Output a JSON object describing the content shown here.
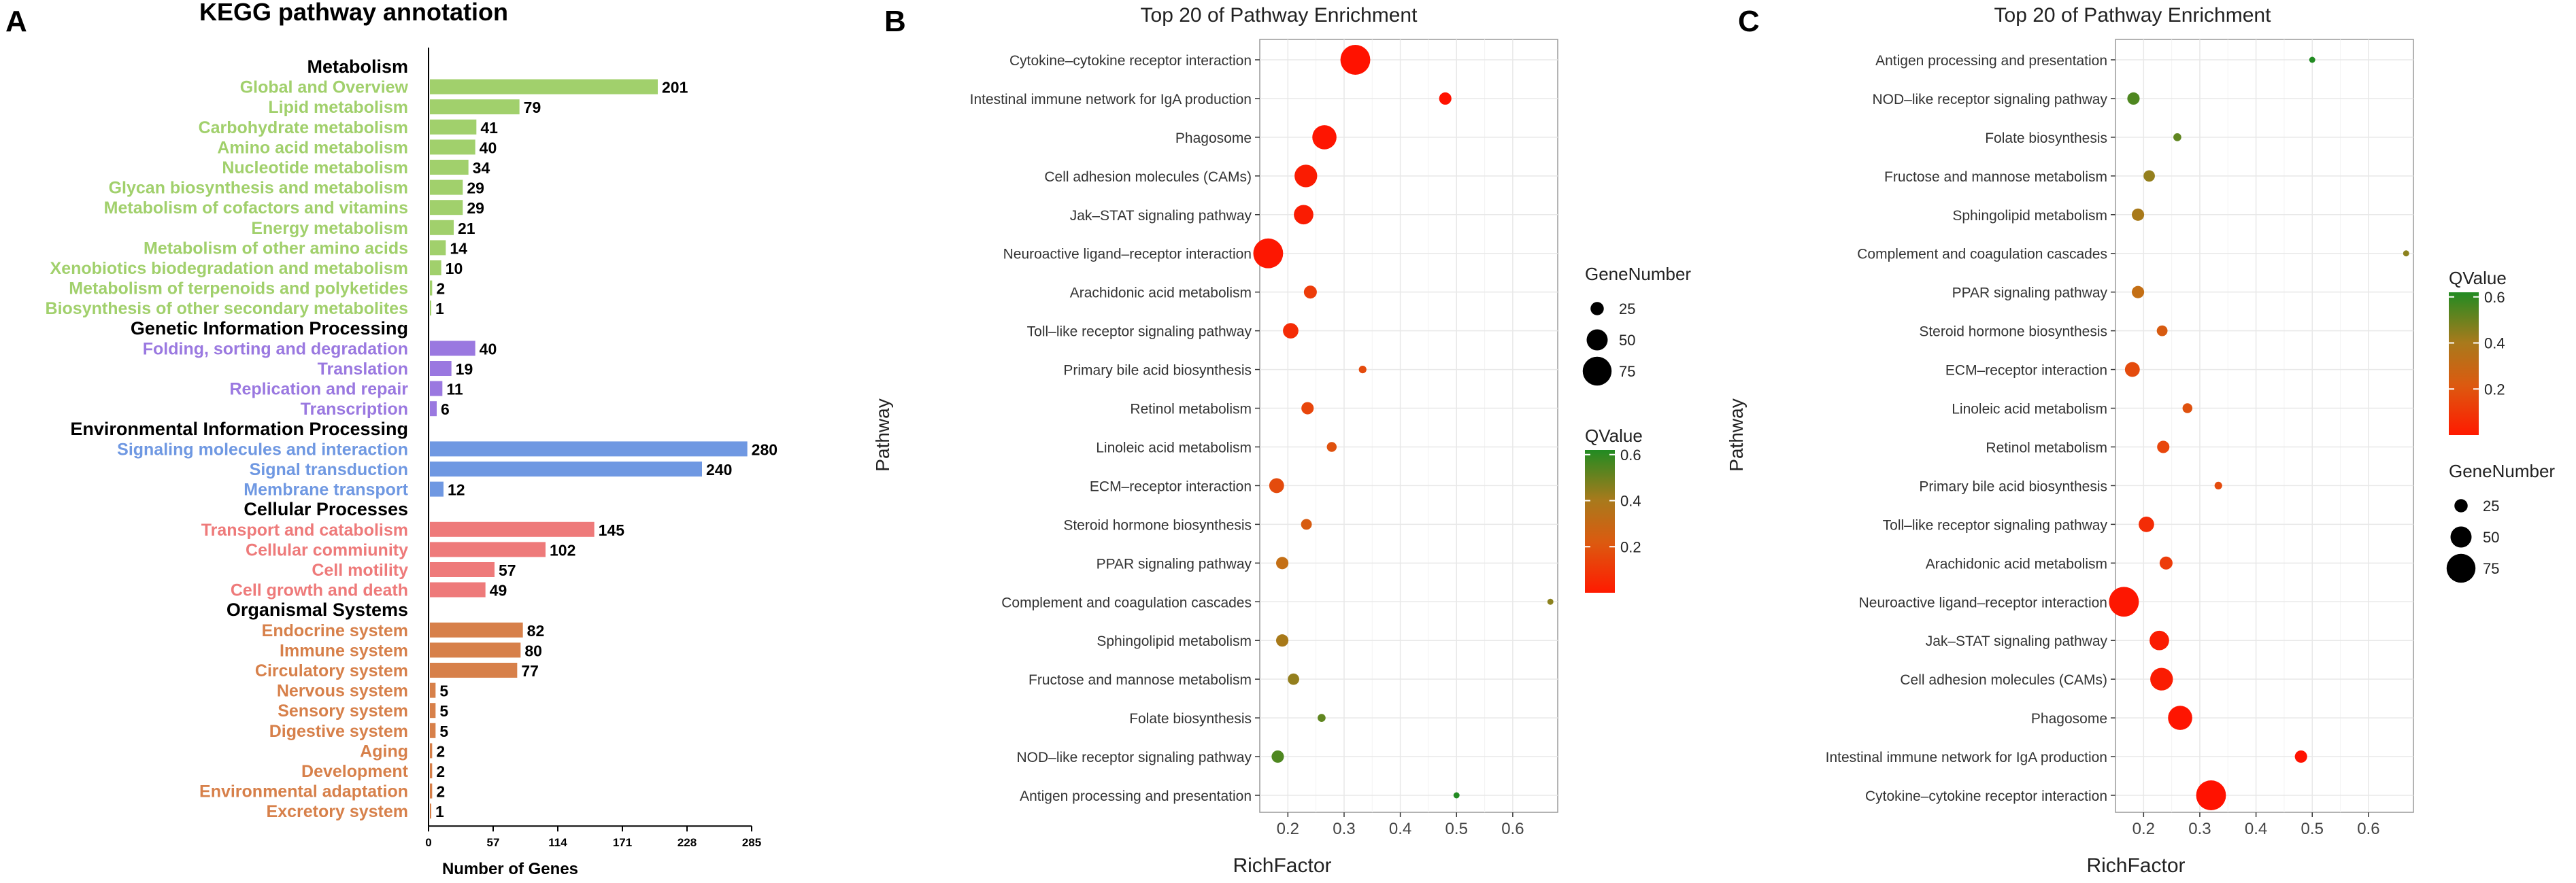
{
  "panels": {
    "a_letter": "A",
    "b_letter": "B",
    "c_letter": "C"
  },
  "chart_data": [
    {
      "type": "bar",
      "orientation": "horizontal",
      "title": "KEGG pathway annotation",
      "xlabel": "Number of Genes",
      "xticks": [
        0,
        57,
        114,
        171,
        228,
        285
      ],
      "xlim": [
        0,
        285
      ],
      "groups": [
        {
          "name": "Metabolism",
          "color": "#a1d06c",
          "items": [
            {
              "label": "Global and Overview",
              "value": 201
            },
            {
              "label": "Lipid metabolism",
              "value": 79
            },
            {
              "label": "Carbohydrate metabolism",
              "value": 41
            },
            {
              "label": "Amino acid metabolism",
              "value": 40
            },
            {
              "label": "Nucleotide metabolism",
              "value": 34
            },
            {
              "label": "Glycan biosynthesis and metabolism",
              "value": 29
            },
            {
              "label": "Metabolism of cofactors and vitamins",
              "value": 29
            },
            {
              "label": "Energy metabolism",
              "value": 21
            },
            {
              "label": "Metabolism of other amino acids",
              "value": 14
            },
            {
              "label": "Xenobiotics biodegradation and metabolism",
              "value": 10
            },
            {
              "label": "Metabolism of terpenoids and polyketides",
              "value": 2
            },
            {
              "label": "Biosynthesis of other secondary metabolites",
              "value": 1
            }
          ]
        },
        {
          "name": "Genetic Information Processing",
          "color": "#9a78e0",
          "items": [
            {
              "label": "Folding, sorting and degradation",
              "value": 40
            },
            {
              "label": "Translation",
              "value": 19
            },
            {
              "label": "Replication and repair",
              "value": 11
            },
            {
              "label": "Transcription",
              "value": 6
            }
          ]
        },
        {
          "name": "Environmental Information Processing",
          "color": "#6f98e2",
          "items": [
            {
              "label": "Signaling molecules and interaction",
              "value": 280
            },
            {
              "label": "Signal transduction",
              "value": 240
            },
            {
              "label": "Membrane transport",
              "value": 12
            }
          ]
        },
        {
          "name": "Cellular Processes",
          "color": "#ee7a7a",
          "items": [
            {
              "label": "Transport and catabolism",
              "value": 145
            },
            {
              "label": "Cellular commiunity",
              "value": 102
            },
            {
              "label": "Cell motility",
              "value": 57
            },
            {
              "label": "Cell growth and death",
              "value": 49
            }
          ]
        },
        {
          "name": "Organismal Systems",
          "color": "#d7804a",
          "items": [
            {
              "label": "Endocrine system",
              "value": 82
            },
            {
              "label": "Immune system",
              "value": 80
            },
            {
              "label": "Circulatory system",
              "value": 77
            },
            {
              "label": "Nervous system",
              "value": 5
            },
            {
              "label": "Sensory system",
              "value": 5
            },
            {
              "label": "Digestive system",
              "value": 5
            },
            {
              "label": "Aging",
              "value": 2
            },
            {
              "label": "Development",
              "value": 2
            },
            {
              "label": "Environmental adaptation",
              "value": 2
            },
            {
              "label": "Excretory system",
              "value": 1
            }
          ]
        }
      ]
    },
    {
      "type": "scatter",
      "title": "Top 20 of Pathway Enrichment",
      "xlabel": "RichFactor",
      "ylabel": "Pathway",
      "xlim": [
        0.15,
        0.68
      ],
      "xticks": [
        "0.2",
        "0.3",
        "0.4",
        "0.5",
        "0.6"
      ],
      "legend_size": {
        "title": "GeneNumber",
        "values": [
          "25",
          "50",
          "75"
        ]
      },
      "legend_color": {
        "title": "QValue",
        "ticks": [
          "0.6",
          "0.4",
          "0.2"
        ],
        "low_color": "#ff0000",
        "high_color": "#228b22"
      },
      "points": [
        {
          "pathway": "Cytokine–cytokine receptor interaction",
          "rich": 0.32,
          "genes": 78,
          "q": 0.0
        },
        {
          "pathway": "Intestinal immune network for IgA production",
          "rich": 0.48,
          "genes": 22,
          "q": 0.0
        },
        {
          "pathway": "Phagosome",
          "rich": 0.265,
          "genes": 60,
          "q": 0.01
        },
        {
          "pathway": "Cell adhesion molecules (CAMs)",
          "rich": 0.232,
          "genes": 55,
          "q": 0.04
        },
        {
          "pathway": "Jak–STAT signaling pathway",
          "rich": 0.228,
          "genes": 45,
          "q": 0.04
        },
        {
          "pathway": "Neuroactive ligand–receptor interaction",
          "rich": 0.165,
          "genes": 78,
          "q": 0.02
        },
        {
          "pathway": "Arachidonic acid metabolism",
          "rich": 0.24,
          "genes": 24,
          "q": 0.16
        },
        {
          "pathway": "Toll–like receptor signaling pathway",
          "rich": 0.205,
          "genes": 32,
          "q": 0.1
        },
        {
          "pathway": "Primary bile acid biosynthesis",
          "rich": 0.333,
          "genes": 7,
          "q": 0.22
        },
        {
          "pathway": "Retinol metabolism",
          "rich": 0.235,
          "genes": 22,
          "q": 0.2
        },
        {
          "pathway": "Linoleic acid metabolism",
          "rich": 0.278,
          "genes": 14,
          "q": 0.24
        },
        {
          "pathway": "ECM–receptor interaction",
          "rich": 0.18,
          "genes": 30,
          "q": 0.22
        },
        {
          "pathway": "Steroid hormone biosynthesis",
          "rich": 0.233,
          "genes": 17,
          "q": 0.28
        },
        {
          "pathway": "PPAR signaling pathway",
          "rich": 0.19,
          "genes": 22,
          "q": 0.36
        },
        {
          "pathway": "Complement and coagulation cascades",
          "rich": 0.667,
          "genes": 2,
          "q": 0.5
        },
        {
          "pathway": "Sphingolipid metabolism",
          "rich": 0.19,
          "genes": 22,
          "q": 0.43
        },
        {
          "pathway": "Fructose and mannose metabolism",
          "rich": 0.21,
          "genes": 19,
          "q": 0.48
        },
        {
          "pathway": "Folate biosynthesis",
          "rich": 0.26,
          "genes": 8,
          "q": 0.55
        },
        {
          "pathway": "NOD–like receptor signaling pathway",
          "rich": 0.182,
          "genes": 22,
          "q": 0.57
        },
        {
          "pathway": "Antigen processing and presentation",
          "rich": 0.5,
          "genes": 2,
          "q": 0.62
        }
      ]
    },
    {
      "type": "scatter",
      "title": "Top 20 of Pathway Enrichment",
      "xlabel": "RichFactor",
      "ylabel": "Pathway",
      "xlim": [
        0.15,
        0.68
      ],
      "xticks": [
        "0.2",
        "0.3",
        "0.4",
        "0.5",
        "0.6"
      ],
      "legend_size": {
        "title": "GeneNumber",
        "values": [
          "25",
          "50",
          "75"
        ]
      },
      "legend_color": {
        "title": "QValue",
        "ticks": [
          "0.6",
          "0.4",
          "0.2"
        ],
        "low_color": "#ff0000",
        "high_color": "#228b22"
      },
      "points": [
        {
          "pathway": "Antigen processing and presentation",
          "rich": 0.5,
          "genes": 2,
          "q": 0.62
        },
        {
          "pathway": "NOD–like receptor signaling pathway",
          "rich": 0.182,
          "genes": 22,
          "q": 0.57
        },
        {
          "pathway": "Folate biosynthesis",
          "rich": 0.26,
          "genes": 8,
          "q": 0.55
        },
        {
          "pathway": "Fructose and mannose metabolism",
          "rich": 0.21,
          "genes": 19,
          "q": 0.48
        },
        {
          "pathway": "Sphingolipid metabolism",
          "rich": 0.19,
          "genes": 22,
          "q": 0.43
        },
        {
          "pathway": "Complement and coagulation cascades",
          "rich": 0.667,
          "genes": 2,
          "q": 0.5
        },
        {
          "pathway": "PPAR signaling pathway",
          "rich": 0.19,
          "genes": 22,
          "q": 0.36
        },
        {
          "pathway": "Steroid hormone biosynthesis",
          "rich": 0.233,
          "genes": 17,
          "q": 0.28
        },
        {
          "pathway": "ECM–receptor interaction",
          "rich": 0.18,
          "genes": 30,
          "q": 0.22
        },
        {
          "pathway": "Linoleic acid metabolism",
          "rich": 0.278,
          "genes": 14,
          "q": 0.24
        },
        {
          "pathway": "Retinol metabolism",
          "rich": 0.235,
          "genes": 22,
          "q": 0.2
        },
        {
          "pathway": "Primary bile acid biosynthesis",
          "rich": 0.333,
          "genes": 7,
          "q": 0.22
        },
        {
          "pathway": "Toll–like receptor signaling pathway",
          "rich": 0.205,
          "genes": 32,
          "q": 0.1
        },
        {
          "pathway": "Arachidonic acid metabolism",
          "rich": 0.24,
          "genes": 24,
          "q": 0.16
        },
        {
          "pathway": "Neuroactive ligand–receptor interaction",
          "rich": 0.165,
          "genes": 78,
          "q": 0.02
        },
        {
          "pathway": "Jak–STAT signaling pathway",
          "rich": 0.228,
          "genes": 45,
          "q": 0.04
        },
        {
          "pathway": "Cell adhesion molecules (CAMs)",
          "rich": 0.232,
          "genes": 55,
          "q": 0.04
        },
        {
          "pathway": "Phagosome",
          "rich": 0.265,
          "genes": 60,
          "q": 0.01
        },
        {
          "pathway": "Intestinal immune network for IgA production",
          "rich": 0.48,
          "genes": 22,
          "q": 0.0
        },
        {
          "pathway": "Cytokine–cytokine receptor interaction",
          "rich": 0.32,
          "genes": 78,
          "q": 0.0
        }
      ]
    }
  ]
}
